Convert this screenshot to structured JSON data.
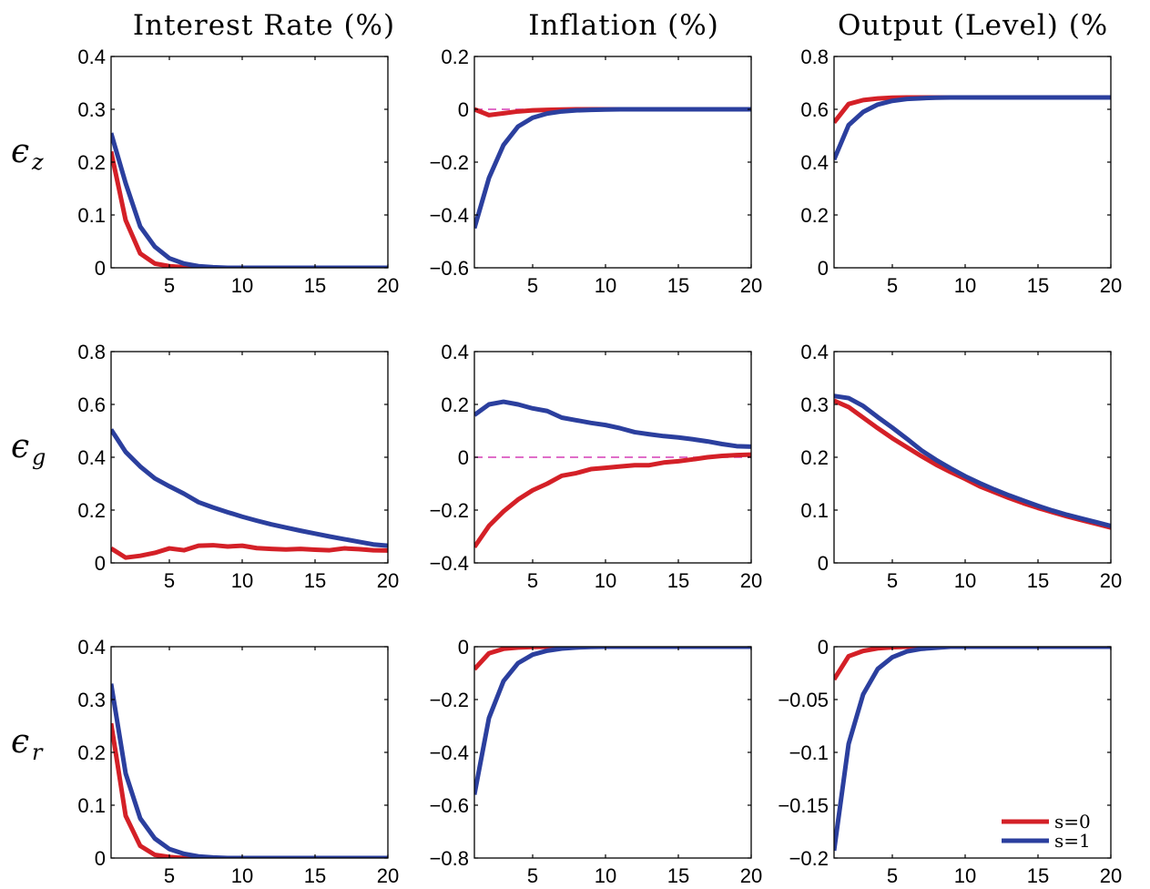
{
  "titles": [
    "Interest Rate (%)",
    "Inflation (%)",
    "Output (Level) (%"
  ],
  "row_labels": [
    {
      "symbol": "ϵ",
      "sub": "z"
    },
    {
      "symbol": "ϵ",
      "sub": "g"
    },
    {
      "symbol": "ϵ",
      "sub": "r"
    }
  ],
  "legend": [
    {
      "label": "s=0",
      "color": "#d42027"
    },
    {
      "label": "s=1",
      "color": "#2b3f9e"
    }
  ],
  "colors": {
    "s0": "#d42027",
    "s1": "#2b3f9e",
    "zero_line": "#d63fb6"
  },
  "chart_data": [
    {
      "type": "line",
      "row": 0,
      "col": 0,
      "xlim": [
        1,
        20
      ],
      "ylim": [
        0,
        0.4
      ],
      "xticks": [
        5,
        10,
        15,
        20
      ],
      "yticks": [
        0,
        0.1,
        0.2,
        0.3,
        0.4
      ],
      "ytick_labels": [
        "0",
        "0.1",
        "0.2",
        "0.3",
        "0.4"
      ],
      "zero_line": false,
      "x": [
        1,
        2,
        3,
        4,
        5,
        6,
        7,
        8,
        9,
        10,
        11,
        12,
        13,
        14,
        15,
        16,
        17,
        18,
        19,
        20
      ],
      "series": [
        {
          "values": [
            0.22,
            0.09,
            0.027,
            0.008,
            0.003,
            0.001,
            0,
            0,
            0,
            0,
            0,
            0,
            0,
            0,
            0,
            0,
            0,
            0,
            0,
            0
          ]
        },
        {
          "values": [
            0.255,
            0.16,
            0.078,
            0.04,
            0.018,
            0.008,
            0.003,
            0.001,
            0,
            0,
            0,
            0,
            0,
            0,
            0,
            0,
            0,
            0,
            0,
            0
          ]
        }
      ]
    },
    {
      "type": "line",
      "row": 0,
      "col": 1,
      "xlim": [
        1,
        20
      ],
      "ylim": [
        -0.6,
        0.2
      ],
      "xticks": [
        5,
        10,
        15,
        20
      ],
      "yticks": [
        -0.6,
        -0.4,
        -0.2,
        0,
        0.2
      ],
      "ytick_labels": [
        "−0.6",
        "−0.4",
        "−0.2",
        "0",
        "0.2"
      ],
      "zero_line": true,
      "x": [
        1,
        2,
        3,
        4,
        5,
        6,
        7,
        8,
        9,
        10,
        11,
        12,
        13,
        14,
        15,
        16,
        17,
        18,
        19,
        20
      ],
      "series": [
        {
          "values": [
            0,
            -0.022,
            -0.015,
            -0.008,
            -0.004,
            -0.002,
            -0.001,
            0,
            0,
            0,
            0,
            0,
            0,
            0,
            0,
            0,
            0,
            0,
            0,
            0
          ]
        },
        {
          "values": [
            -0.45,
            -0.26,
            -0.135,
            -0.065,
            -0.032,
            -0.016,
            -0.008,
            -0.004,
            -0.002,
            -0.001,
            0,
            0,
            0,
            0,
            0,
            0,
            0,
            0,
            0,
            0
          ]
        }
      ]
    },
    {
      "type": "line",
      "row": 0,
      "col": 2,
      "xlim": [
        1,
        20
      ],
      "ylim": [
        0,
        0.8
      ],
      "xticks": [
        5,
        10,
        15,
        20
      ],
      "yticks": [
        0,
        0.2,
        0.4,
        0.6,
        0.8
      ],
      "ytick_labels": [
        "0",
        "0.2",
        "0.4",
        "0.6",
        "0.8"
      ],
      "zero_line": false,
      "x": [
        1,
        2,
        3,
        4,
        5,
        6,
        7,
        8,
        9,
        10,
        11,
        12,
        13,
        14,
        15,
        16,
        17,
        18,
        19,
        20
      ],
      "series": [
        {
          "values": [
            0.55,
            0.62,
            0.635,
            0.641,
            0.644,
            0.645,
            0.645,
            0.645,
            0.645,
            0.645,
            0.645,
            0.645,
            0.645,
            0.645,
            0.645,
            0.645,
            0.645,
            0.645,
            0.645,
            0.645
          ]
        },
        {
          "values": [
            0.41,
            0.54,
            0.59,
            0.618,
            0.632,
            0.639,
            0.642,
            0.644,
            0.645,
            0.645,
            0.645,
            0.645,
            0.645,
            0.645,
            0.645,
            0.645,
            0.645,
            0.645,
            0.645,
            0.645
          ]
        }
      ]
    },
    {
      "type": "line",
      "row": 1,
      "col": 0,
      "xlim": [
        1,
        20
      ],
      "ylim": [
        0,
        0.8
      ],
      "xticks": [
        5,
        10,
        15,
        20
      ],
      "yticks": [
        0,
        0.2,
        0.4,
        0.6,
        0.8
      ],
      "ytick_labels": [
        "0",
        "0.2",
        "0.4",
        "0.6",
        "0.8"
      ],
      "zero_line": false,
      "x": [
        1,
        2,
        3,
        4,
        5,
        6,
        7,
        8,
        9,
        10,
        11,
        12,
        13,
        14,
        15,
        16,
        17,
        18,
        19,
        20
      ],
      "series": [
        {
          "values": [
            0.055,
            0.02,
            0.027,
            0.038,
            0.055,
            0.048,
            0.065,
            0.067,
            0.062,
            0.065,
            0.056,
            0.053,
            0.051,
            0.053,
            0.05,
            0.048,
            0.055,
            0.052,
            0.048,
            0.047
          ]
        },
        {
          "values": [
            0.505,
            0.42,
            0.365,
            0.32,
            0.29,
            0.262,
            0.23,
            0.21,
            0.192,
            0.175,
            0.16,
            0.146,
            0.134,
            0.122,
            0.111,
            0.1,
            0.09,
            0.08,
            0.07,
            0.065
          ]
        }
      ]
    },
    {
      "type": "line",
      "row": 1,
      "col": 1,
      "xlim": [
        1,
        20
      ],
      "ylim": [
        -0.4,
        0.4
      ],
      "xticks": [
        5,
        10,
        15,
        20
      ],
      "yticks": [
        -0.4,
        -0.2,
        0,
        0.2,
        0.4
      ],
      "ytick_labels": [
        "−0.4",
        "−0.2",
        "0",
        "0.2",
        "0.4"
      ],
      "zero_line": true,
      "x": [
        1,
        2,
        3,
        4,
        5,
        6,
        7,
        8,
        9,
        10,
        11,
        12,
        13,
        14,
        15,
        16,
        17,
        18,
        19,
        20
      ],
      "series": [
        {
          "values": [
            -0.34,
            -0.26,
            -0.205,
            -0.16,
            -0.125,
            -0.1,
            -0.07,
            -0.06,
            -0.045,
            -0.04,
            -0.035,
            -0.03,
            -0.03,
            -0.02,
            -0.015,
            -0.008,
            0,
            0.005,
            0.008,
            0.01
          ]
        },
        {
          "values": [
            0.16,
            0.2,
            0.21,
            0.2,
            0.185,
            0.175,
            0.15,
            0.14,
            0.13,
            0.122,
            0.11,
            0.095,
            0.087,
            0.08,
            0.075,
            0.068,
            0.06,
            0.05,
            0.042,
            0.04
          ]
        }
      ]
    },
    {
      "type": "line",
      "row": 1,
      "col": 2,
      "xlim": [
        1,
        20
      ],
      "ylim": [
        0,
        0.4
      ],
      "xticks": [
        5,
        10,
        15,
        20
      ],
      "yticks": [
        0,
        0.1,
        0.2,
        0.3,
        0.4
      ],
      "ytick_labels": [
        "0",
        "0.1",
        "0.2",
        "0.3",
        "0.4"
      ],
      "zero_line": false,
      "x": [
        1,
        2,
        3,
        4,
        5,
        6,
        7,
        8,
        9,
        10,
        11,
        12,
        13,
        14,
        15,
        16,
        17,
        18,
        19,
        20
      ],
      "series": [
        {
          "values": [
            0.307,
            0.295,
            0.275,
            0.255,
            0.236,
            0.219,
            0.202,
            0.186,
            0.172,
            0.159,
            0.145,
            0.134,
            0.123,
            0.113,
            0.104,
            0.096,
            0.088,
            0.081,
            0.074,
            0.067
          ]
        },
        {
          "values": [
            0.316,
            0.312,
            0.297,
            0.276,
            0.256,
            0.235,
            0.213,
            0.195,
            0.179,
            0.164,
            0.151,
            0.139,
            0.128,
            0.118,
            0.108,
            0.099,
            0.091,
            0.084,
            0.077,
            0.07
          ]
        }
      ]
    },
    {
      "type": "line",
      "row": 2,
      "col": 0,
      "xlim": [
        1,
        20
      ],
      "ylim": [
        0,
        0.4
      ],
      "xticks": [
        5,
        10,
        15,
        20
      ],
      "yticks": [
        0,
        0.1,
        0.2,
        0.3,
        0.4
      ],
      "ytick_labels": [
        "0",
        "0.1",
        "0.2",
        "0.3",
        "0.4"
      ],
      "zero_line": false,
      "x": [
        1,
        2,
        3,
        4,
        5,
        6,
        7,
        8,
        9,
        10,
        11,
        12,
        13,
        14,
        15,
        16,
        17,
        18,
        19,
        20
      ],
      "series": [
        {
          "values": [
            0.255,
            0.08,
            0.023,
            0.006,
            0.002,
            0,
            0,
            0,
            0,
            0,
            0,
            0,
            0,
            0,
            0,
            0,
            0,
            0,
            0,
            0
          ]
        },
        {
          "values": [
            0.33,
            0.16,
            0.075,
            0.037,
            0.017,
            0.008,
            0.003,
            0.001,
            0,
            0,
            0,
            0,
            0,
            0,
            0,
            0,
            0,
            0,
            0,
            0
          ]
        }
      ]
    },
    {
      "type": "line",
      "row": 2,
      "col": 1,
      "xlim": [
        1,
        20
      ],
      "ylim": [
        -0.8,
        0
      ],
      "xticks": [
        5,
        10,
        15,
        20
      ],
      "yticks": [
        -0.8,
        -0.6,
        -0.4,
        -0.2,
        0
      ],
      "ytick_labels": [
        "−0.8",
        "−0.6",
        "−0.4",
        "−0.2",
        "0"
      ],
      "zero_line": false,
      "x": [
        1,
        2,
        3,
        4,
        5,
        6,
        7,
        8,
        9,
        10,
        11,
        12,
        13,
        14,
        15,
        16,
        17,
        18,
        19,
        20
      ],
      "series": [
        {
          "values": [
            -0.085,
            -0.025,
            -0.008,
            -0.003,
            -0.001,
            0,
            0,
            0,
            0,
            0,
            0,
            0,
            0,
            0,
            0,
            0,
            0,
            0,
            0,
            0
          ]
        },
        {
          "values": [
            -0.56,
            -0.27,
            -0.13,
            -0.062,
            -0.03,
            -0.015,
            -0.007,
            -0.003,
            -0.001,
            0,
            0,
            0,
            0,
            0,
            0,
            0,
            0,
            0,
            0,
            0
          ]
        }
      ]
    },
    {
      "type": "line",
      "row": 2,
      "col": 2,
      "xlim": [
        1,
        20
      ],
      "ylim": [
        -0.2,
        0
      ],
      "xticks": [
        5,
        10,
        15,
        20
      ],
      "yticks": [
        -0.2,
        -0.15,
        -0.1,
        -0.05,
        0
      ],
      "ytick_labels": [
        "−0.2",
        "−0.15",
        "−0.1",
        "−0.05",
        "0"
      ],
      "zero_line": false,
      "x": [
        1,
        2,
        3,
        4,
        5,
        6,
        7,
        8,
        9,
        10,
        11,
        12,
        13,
        14,
        15,
        16,
        17,
        18,
        19,
        20
      ],
      "series": [
        {
          "values": [
            -0.031,
            -0.009,
            -0.004,
            -0.0015,
            -0.0005,
            0,
            0,
            0,
            0,
            0,
            0,
            0,
            0,
            0,
            0,
            0,
            0,
            0,
            0,
            0
          ]
        },
        {
          "values": [
            -0.193,
            -0.092,
            -0.045,
            -0.021,
            -0.01,
            -0.0045,
            -0.002,
            -0.001,
            0,
            0,
            0,
            0,
            0,
            0,
            0,
            0,
            0,
            0,
            0,
            0
          ]
        }
      ]
    }
  ]
}
